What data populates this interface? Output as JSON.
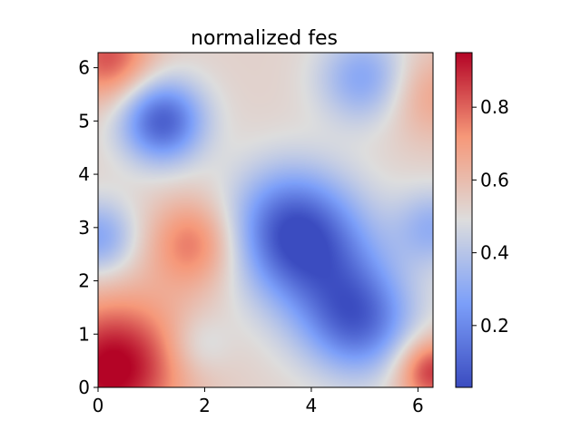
{
  "chart_data": [
    {
      "type": "heatmap",
      "title": "normalized fes",
      "xlabel": "",
      "ylabel": "",
      "xlim": [
        0,
        6.283
      ],
      "ylim": [
        0,
        6.283
      ],
      "xticks": [
        0,
        2,
        4,
        6
      ],
      "yticks": [
        0,
        1,
        2,
        3,
        4,
        5,
        6
      ],
      "colormap": "coolwarm",
      "value_range": [
        0.03,
        0.95
      ],
      "grid": false,
      "field_components": [
        {
          "center": [
            0.4,
            0.5
          ],
          "sigma": 0.9,
          "amplitude": 0.32
        },
        {
          "center": [
            0.0,
            0.0
          ],
          "sigma": 0.9,
          "amplitude": 0.15
        },
        {
          "center": [
            1.8,
            2.7
          ],
          "sigma": 0.6,
          "amplitude": 0.25
        },
        {
          "center": [
            0.2,
            6.2
          ],
          "sigma": 0.6,
          "amplitude": 0.3
        },
        {
          "center": [
            6.25,
            0.3
          ],
          "sigma": 0.45,
          "amplitude": 0.35
        },
        {
          "center": [
            6.2,
            5.5
          ],
          "sigma": 0.6,
          "amplitude": 0.15
        },
        {
          "center": [
            1.2,
            5.0
          ],
          "sigma": 0.55,
          "amplitude": -0.45
        },
        {
          "center": [
            3.6,
            3.0
          ],
          "sigma": 0.8,
          "amplitude": -0.4
        },
        {
          "center": [
            4.9,
            1.2
          ],
          "sigma": 0.7,
          "amplitude": -0.35
        },
        {
          "center": [
            4.3,
            2.2
          ],
          "sigma": 0.9,
          "amplitude": -0.25
        },
        {
          "center": [
            5.0,
            5.8
          ],
          "sigma": 0.6,
          "amplitude": -0.25
        },
        {
          "center": [
            0.0,
            2.8
          ],
          "sigma": 0.5,
          "amplitude": -0.25
        },
        {
          "center": [
            6.3,
            3.0
          ],
          "sigma": 0.5,
          "amplitude": -0.2
        },
        {
          "center": [
            1.9,
            0.8
          ],
          "sigma": 0.4,
          "amplitude": -0.1
        }
      ],
      "field_base": 0.53
    },
    {
      "type": "colorbar",
      "range": [
        0.03,
        0.95
      ],
      "ticks": [
        0.2,
        0.4,
        0.6,
        0.8
      ],
      "colormap": "coolwarm"
    }
  ]
}
